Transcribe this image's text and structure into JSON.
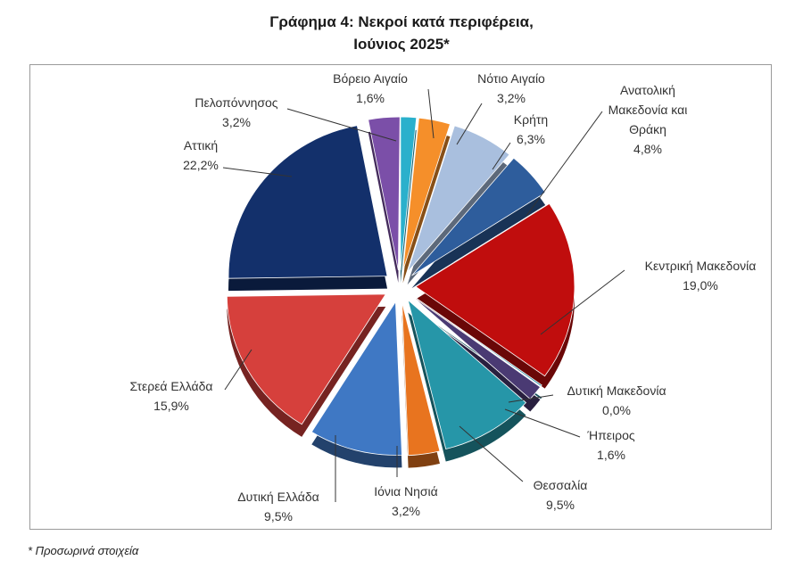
{
  "title_line1": "Γράφημα 4: Νεκροί κατά περιφέρεια,",
  "title_line2": "Ιούνιος 2025*",
  "footnote": "* Προσωρινά στοιχεία",
  "chart_data": {
    "type": "pie",
    "title": "Γράφημα 4: Νεκροί κατά περιφέρεια, Ιούνιος 2025*",
    "value_format": "percent",
    "slices": [
      {
        "label": "Βόρειο Αιγαίο",
        "value": 1.6,
        "display": "1,6%",
        "color": "#2ab0cc"
      },
      {
        "label": "Νότιο Αιγαίο",
        "value": 3.2,
        "display": "3,2%",
        "color": "#f58f2a"
      },
      {
        "label": "Κρήτη",
        "value": 6.3,
        "display": "6,3%",
        "color": "#a9bfde"
      },
      {
        "label": "Ανατολική Μακεδονία και Θράκη",
        "value": 4.8,
        "display": "4,8%",
        "color": "#2e5d9c"
      },
      {
        "label": "Κεντρική Μακεδονία",
        "value": 19.0,
        "display": "19,0%",
        "color": "#c00d0d"
      },
      {
        "label": "Δυτική Μακεδονία",
        "value": 0.0,
        "display": "0,0%",
        "color": "#2a8fa8"
      },
      {
        "label": "Ήπειρος",
        "value": 1.6,
        "display": "1,6%",
        "color": "#4a3a73"
      },
      {
        "label": "Θεσσαλία",
        "value": 9.5,
        "display": "9,5%",
        "color": "#2696a8"
      },
      {
        "label": "Ιόνια Νησιά",
        "value": 3.2,
        "display": "3,2%",
        "color": "#e8741f"
      },
      {
        "label": "Δυτική Ελλάδα",
        "value": 9.5,
        "display": "9,5%",
        "color": "#3f78c4"
      },
      {
        "label": "Στερεά Ελλάδα",
        "value": 15.9,
        "display": "15,9%",
        "color": "#d6403c"
      },
      {
        "label": "Αττική",
        "value": 22.2,
        "display": "22,2%",
        "color": "#13306b"
      },
      {
        "label": "Πελοπόννησος",
        "value": 3.2,
        "display": "3,2%",
        "color": "#7b4fa8"
      }
    ]
  }
}
